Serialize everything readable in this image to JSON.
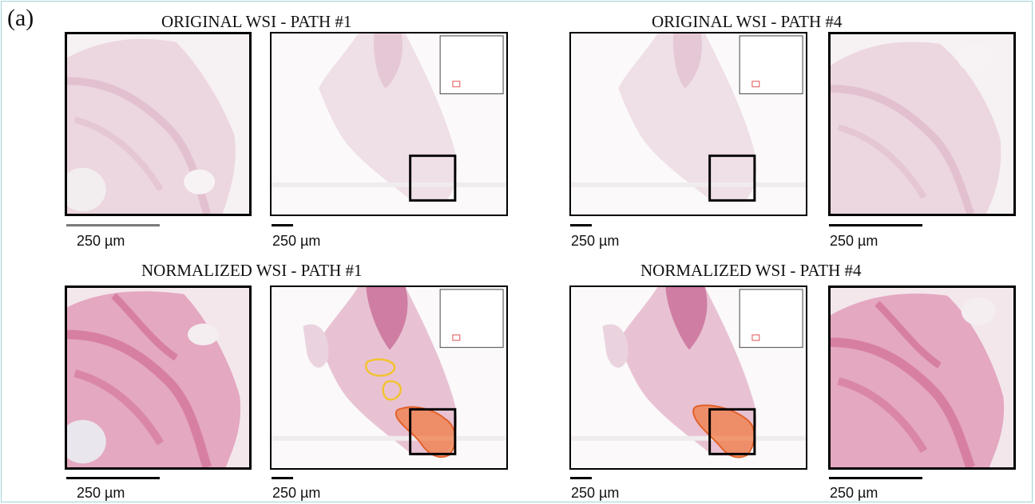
{
  "panel_label": "(a)",
  "titles": {
    "original_path1": "ORIGINAL WSI - PATH #1",
    "original_path4": "ORIGINAL WSI - PATH #4",
    "normalized_path1": "NORMALIZED WSI - PATH #1",
    "normalized_path4": "NORMALIZED WSI - PATH #4"
  },
  "scale_labels": {
    "top_zoom_left": "250 µm",
    "top_wsi_left": "250 µm",
    "top_wsi_right": "250 µm",
    "top_zoom_right": "250 µm",
    "bottom_zoom_left": "250 µm",
    "bottom_wsi_left": "250 µm",
    "bottom_wsi_right": "250 µm",
    "bottom_zoom_right": "250 µm"
  },
  "colors": {
    "original_tissue": "#e9c9d6",
    "normalized_tissue": "#d9799f",
    "annotation_orange": "#f07c45",
    "annotation_yellow": "#f2c230",
    "overview_marker": "#e05050"
  }
}
